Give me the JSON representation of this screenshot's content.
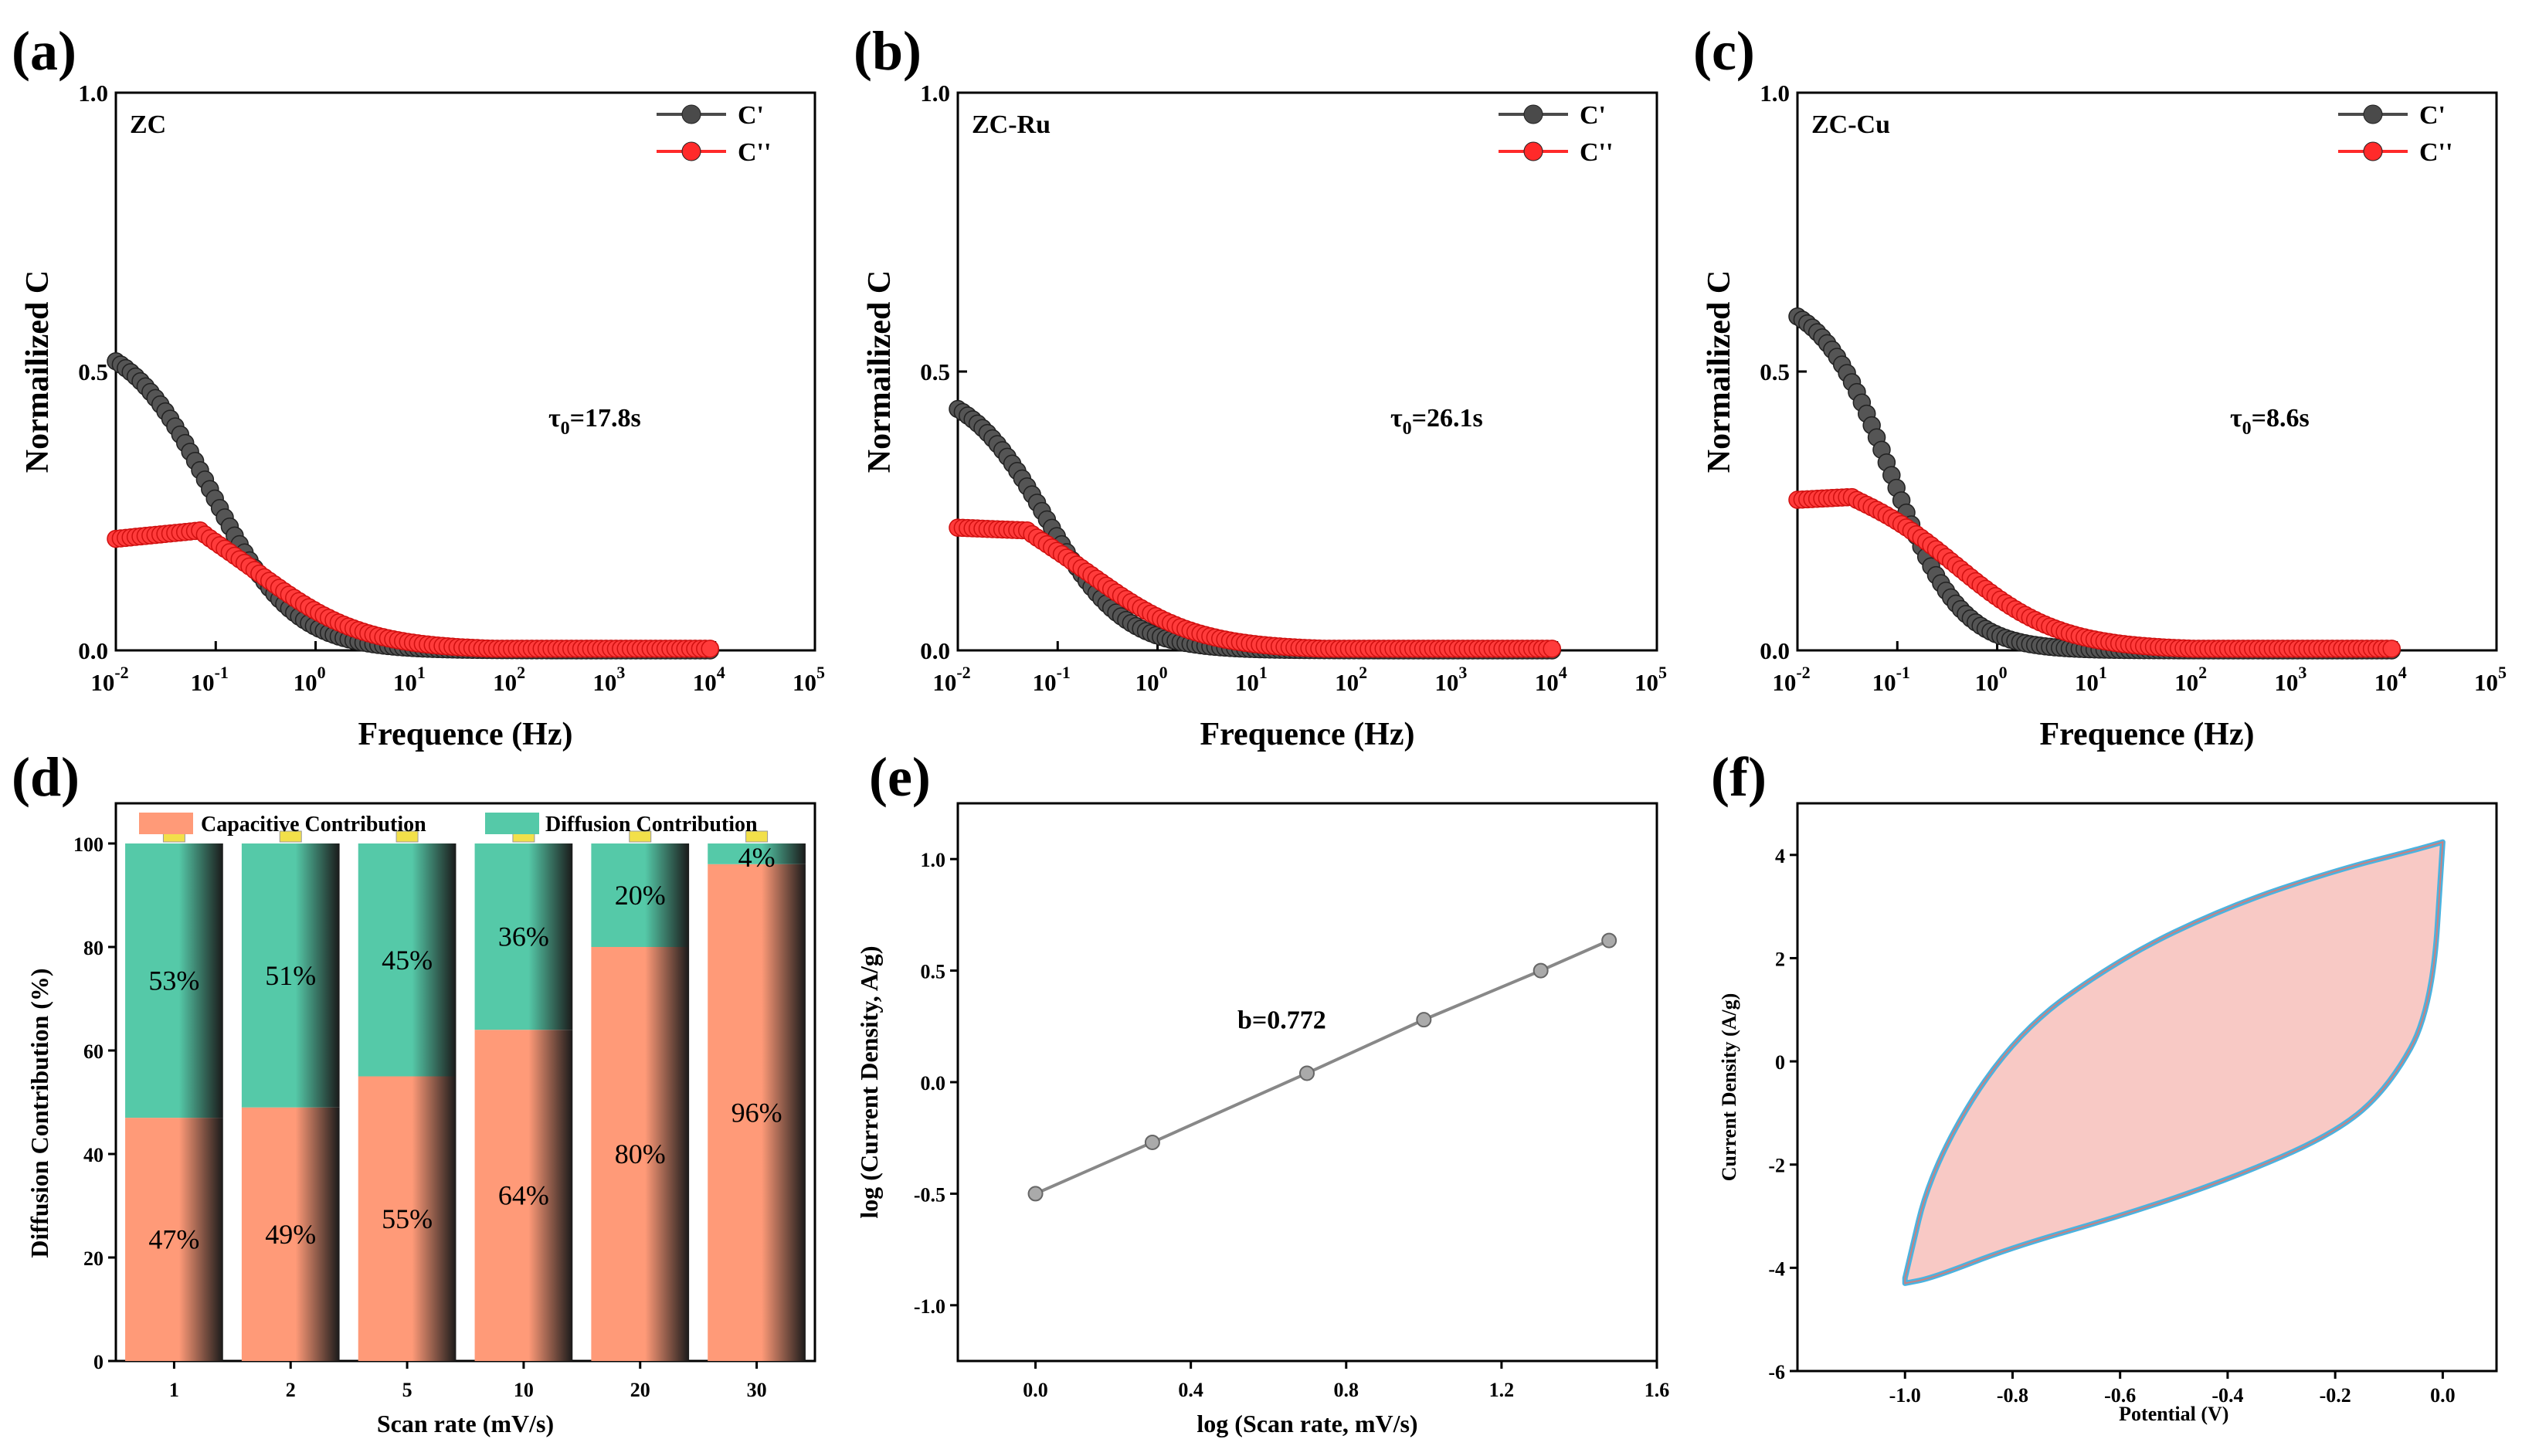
{
  "chart_data": [
    {
      "panel": "(a)",
      "type": "scatter",
      "title": "ZC",
      "xlabel": "Frequence (Hz)",
      "ylabel": "Normailized C",
      "xscale": "log",
      "xlim": [
        0.01,
        100000
      ],
      "ylim": [
        0,
        1.0
      ],
      "x_ticks": [
        "10",
        "10",
        "10",
        "10",
        "10",
        "10",
        "10",
        "10"
      ],
      "x_tick_exps": [
        "-2",
        "-1",
        "0",
        "1",
        "2",
        "3",
        "4",
        "5"
      ],
      "y_ticks": [
        "0.0",
        "0.5",
        "1.0"
      ],
      "annotation": {
        "base": "τ",
        "sub": "0",
        "rest": "=17.8s"
      },
      "legend": [
        "C'",
        "C''"
      ],
      "series": [
        {
          "name": "C'",
          "color": "#4a4a4a",
          "start": 0.57,
          "fc": 0.09,
          "n": 1.05
        },
        {
          "name": "C''",
          "color": "#ff2a2a",
          "plateau": 0.2,
          "peak": 0.215,
          "peak_x": 0.07,
          "fc": 0.22
        }
      ]
    },
    {
      "panel": "(b)",
      "type": "scatter",
      "title": "ZC-Ru",
      "xlabel": "Frequence (Hz)",
      "ylabel": "Normailized C",
      "xscale": "log",
      "xlim": [
        0.01,
        100000
      ],
      "ylim": [
        0,
        1.0
      ],
      "x_ticks": [
        "10",
        "10",
        "10",
        "10",
        "10",
        "10",
        "10",
        "10"
      ],
      "x_tick_exps": [
        "-2",
        "-1",
        "0",
        "1",
        "2",
        "3",
        "4",
        "5"
      ],
      "y_ticks": [
        "0.0",
        "0.5",
        "1.0"
      ],
      "annotation": {
        "base": "τ",
        "sub": "0",
        "rest": "=26.1s"
      },
      "legend": [
        "C'",
        "C''"
      ],
      "series": [
        {
          "name": "C'",
          "color": "#4a4a4a",
          "start": 0.48,
          "fc": 0.075,
          "n": 1.1
        },
        {
          "name": "C''",
          "color": "#ff2a2a",
          "plateau": 0.22,
          "peak": 0.215,
          "peak_x": 0.05,
          "fc": 0.17
        }
      ]
    },
    {
      "panel": "(c)",
      "type": "scatter",
      "title": "ZC-Cu",
      "xlabel": "Frequence (Hz)",
      "ylabel": "Normailized C",
      "xscale": "log",
      "xlim": [
        0.01,
        100000
      ],
      "ylim": [
        0,
        1.0
      ],
      "x_ticks": [
        "10",
        "10",
        "10",
        "10",
        "10",
        "10",
        "10",
        "10"
      ],
      "x_tick_exps": [
        "-2",
        "-1",
        "0",
        "1",
        "2",
        "3",
        "4",
        "5"
      ],
      "y_ticks": [
        "0.0",
        "0.5",
        "1.0"
      ],
      "annotation": {
        "base": "τ",
        "sub": "0",
        "rest": "=8.6s"
      },
      "legend": [
        "C'",
        "C''"
      ],
      "series": [
        {
          "name": "C'",
          "color": "#4a4a4a",
          "start": 0.64,
          "fc": 0.085,
          "n": 1.25
        },
        {
          "name": "C''",
          "color": "#ff2a2a",
          "plateau": 0.27,
          "peak": 0.275,
          "peak_x": 0.035,
          "fc": 0.25
        }
      ]
    },
    {
      "panel": "(d)",
      "type": "bar",
      "xlabel": "Scan rate (mV/s)",
      "ylabel": "Diffusion Contribution (%)",
      "ylim": [
        0,
        100
      ],
      "y_ticks": [
        "0",
        "20",
        "40",
        "60",
        "80",
        "100"
      ],
      "categories": [
        "1",
        "2",
        "5",
        "10",
        "20",
        "30"
      ],
      "series": [
        {
          "name": "Capacitive Contribution",
          "color": "#ff9a78",
          "values": [
            47,
            49,
            55,
            64,
            80,
            96
          ]
        },
        {
          "name": "Diffusion Contribution",
          "color": "#55c9a8",
          "values": [
            53,
            51,
            45,
            36,
            20,
            4
          ]
        }
      ],
      "labels_capacitive": [
        "47%",
        "49%",
        "55%",
        "64%",
        "80%",
        "96%"
      ],
      "labels_diffusion": [
        "53%",
        "51%",
        "45%",
        "36%",
        "20%",
        "4%"
      ]
    },
    {
      "panel": "(e)",
      "type": "line",
      "xlabel": "log (Scan rate, mV/s)",
      "ylabel": "log (Current Density, A/g)",
      "xlim": [
        -0.2,
        1.6
      ],
      "ylim": [
        -1.25,
        1.25
      ],
      "x_ticks": [
        "0.0",
        "0.4",
        "0.8",
        "1.2",
        "1.6"
      ],
      "y_ticks": [
        "-1.0",
        "-0.5",
        "0.0",
        "0.5",
        "1.0"
      ],
      "annotation": "b=0.772",
      "x": [
        0.0,
        0.301,
        0.699,
        1.0,
        1.301,
        1.477
      ],
      "y": [
        -0.5,
        -0.27,
        0.04,
        0.28,
        0.5,
        0.635
      ]
    },
    {
      "panel": "(f)",
      "type": "line",
      "xlabel": "Potential (V)",
      "ylabel": "Current Density (A/g)",
      "xlim": [
        -1.2,
        0.1
      ],
      "ylim": [
        -6,
        5
      ],
      "x_ticks": [
        "-1.0",
        "-0.8",
        "-0.6",
        "-0.4",
        "-0.2",
        "0.0"
      ],
      "y_ticks": [
        "-6",
        "-4",
        "-2",
        "0",
        "2",
        "4"
      ],
      "fill_color": "#f8c9c5",
      "outline_color": "#4ab3e0",
      "upper": {
        "x": [
          -1.0,
          -0.95,
          -0.8,
          -0.6,
          -0.4,
          -0.2,
          -0.05,
          0.0
        ],
        "y": [
          -4.2,
          -2.0,
          0.5,
          2.0,
          3.0,
          3.7,
          4.1,
          4.25
        ]
      },
      "lower": {
        "x": [
          0.0,
          -0.02,
          -0.1,
          -0.2,
          -0.4,
          -0.6,
          -0.8,
          -0.95,
          -1.0
        ],
        "y": [
          4.25,
          1.0,
          -0.5,
          -1.4,
          -2.3,
          -3.0,
          -3.6,
          -4.2,
          -4.3
        ]
      }
    }
  ]
}
